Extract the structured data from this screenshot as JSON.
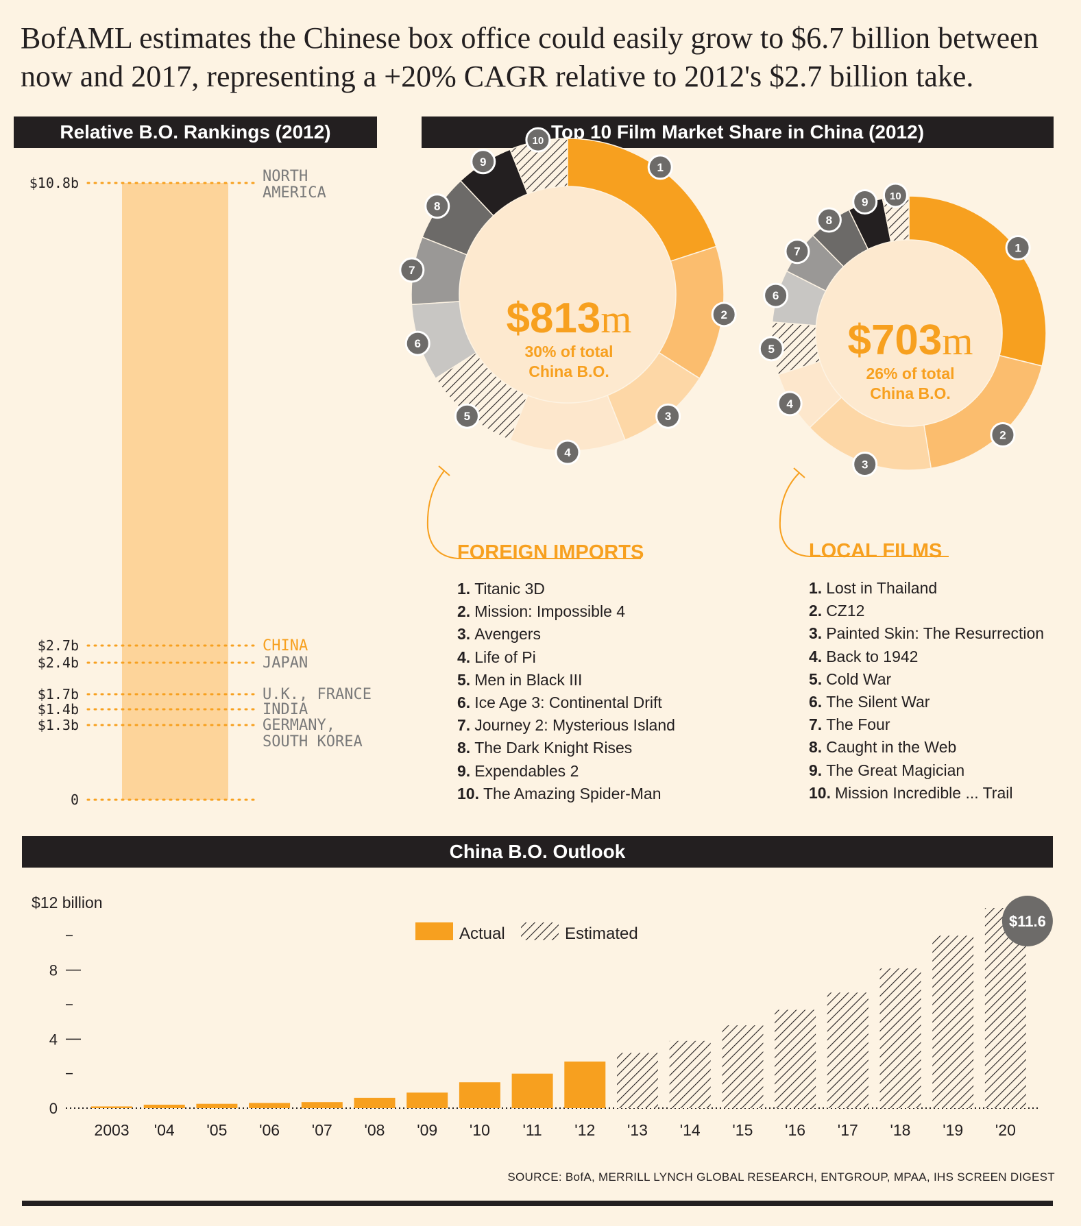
{
  "headline": "BofAML estimates the Chinese box office could easily grow to $6.7 billion between now and 2017, representing a +20% CAGR relative to 2012's $2.7 billion take.",
  "colors": {
    "orange": "#f7a01f",
    "light_orange": "#fdd49a",
    "dark": "#231f20",
    "background": "#fdf3e3"
  },
  "rankings": {
    "title": "Relative B.O. Rankings (2012)",
    "zero_label": "0",
    "items": [
      {
        "value_label": "$10.8b",
        "value": 10.8,
        "name": "NORTH AMERICA",
        "highlight": false
      },
      {
        "value_label": "$2.7b",
        "value": 2.7,
        "name": "CHINA",
        "highlight": true
      },
      {
        "value_label": "$2.4b",
        "value": 2.4,
        "name": "JAPAN",
        "highlight": false
      },
      {
        "value_label": "$1.7b",
        "value": 1.7,
        "name": "U.K., FRANCE",
        "highlight": false
      },
      {
        "value_label": "$1.4b",
        "value": 1.4,
        "name": "INDIA",
        "highlight": false
      },
      {
        "value_label": "$1.3b",
        "value": 1.3,
        "name": "GERMANY, SOUTH KOREA",
        "highlight": false
      }
    ]
  },
  "share": {
    "title": "Top 10 Film Market Share in China (2012)",
    "foreign": {
      "center_amount": "$813",
      "center_unit": "m",
      "center_line1": "30% of total",
      "center_line2": "China B.O.",
      "list_title": "FOREIGN IMPORTS",
      "films": [
        "Titanic 3D",
        "Mission: Impossible 4",
        "Avengers",
        "Life of Pi",
        "Men in Black III",
        "Ice Age 3: Continental Drift",
        "Journey 2: Mysterious Island",
        "The Dark Knight Rises",
        "Expendables 2",
        "The Amazing Spider-Man"
      ]
    },
    "local": {
      "center_amount": "$703",
      "center_unit": "m",
      "center_line1": "26% of total",
      "center_line2": "China B.O.",
      "list_title": "LOCAL FILMS",
      "films": [
        "Lost in Thailand",
        "CZ12",
        "Painted Skin: The Resurrection",
        "Back to 1942",
        "Cold War",
        "The Silent War",
        "The Four",
        "Caught in the Web",
        "The Great Magician",
        "Mission Incredible ... Trail"
      ]
    }
  },
  "outlook": {
    "title": "China B.O. Outlook",
    "legend": {
      "actual": "Actual",
      "estimated": "Estimated"
    },
    "callout": "$11.6",
    "source": "SOURCE: BofA, MERRILL LYNCH GLOBAL RESEARCH, ENTGROUP, MPAA, IHS SCREEN DIGEST"
  },
  "chart_data": [
    {
      "type": "bar",
      "title": "Relative B.O. Rankings (2012)",
      "categories": [
        "NORTH AMERICA",
        "CHINA",
        "JAPAN",
        "U.K., FRANCE",
        "INDIA",
        "GERMANY, SOUTH KOREA"
      ],
      "values": [
        10.8,
        2.7,
        2.4,
        1.7,
        1.4,
        1.3
      ],
      "ylim": [
        0,
        10.8
      ]
    },
    {
      "type": "pie",
      "title": "Top 10 Film Market Share in China (2012)",
      "categories": [
        "1",
        "2",
        "3",
        "4",
        "5",
        "6",
        "7",
        "8",
        "9",
        "10"
      ],
      "values": [
        20,
        14,
        10,
        12,
        10,
        8,
        7,
        7,
        6,
        6
      ],
      "series_label": "FOREIGN IMPORTS"
    },
    {
      "type": "pie",
      "title": "Top 10 Film Market Share in China (2012)",
      "categories": [
        "1",
        "2",
        "3",
        "4",
        "5",
        "6",
        "7",
        "8",
        "9",
        "10"
      ],
      "values": [
        28,
        18,
        15,
        7,
        6,
        6,
        5,
        5,
        4,
        3
      ],
      "series_label": "LOCAL FILMS"
    },
    {
      "type": "bar",
      "title": "China B.O. Outlook",
      "categories": [
        "2003",
        "'04",
        "'05",
        "'06",
        "'07",
        "'08",
        "'09",
        "'10",
        "'11",
        "'12",
        "'13",
        "'14",
        "'15",
        "'16",
        "'17",
        "'18",
        "'19",
        "'20"
      ],
      "ylabel": "$12 billion",
      "ylim": [
        0,
        12
      ],
      "yticks": [
        "0",
        "4",
        "8"
      ],
      "series": [
        {
          "name": "Actual",
          "values": [
            0.1,
            0.2,
            0.25,
            0.3,
            0.35,
            0.6,
            0.9,
            1.5,
            2.0,
            2.7,
            null,
            null,
            null,
            null,
            null,
            null,
            null,
            null
          ]
        },
        {
          "name": "Estimated",
          "values": [
            null,
            null,
            null,
            null,
            null,
            null,
            null,
            null,
            null,
            null,
            3.2,
            3.9,
            4.8,
            5.7,
            6.7,
            8.1,
            10.0,
            11.6
          ]
        }
      ]
    }
  ]
}
